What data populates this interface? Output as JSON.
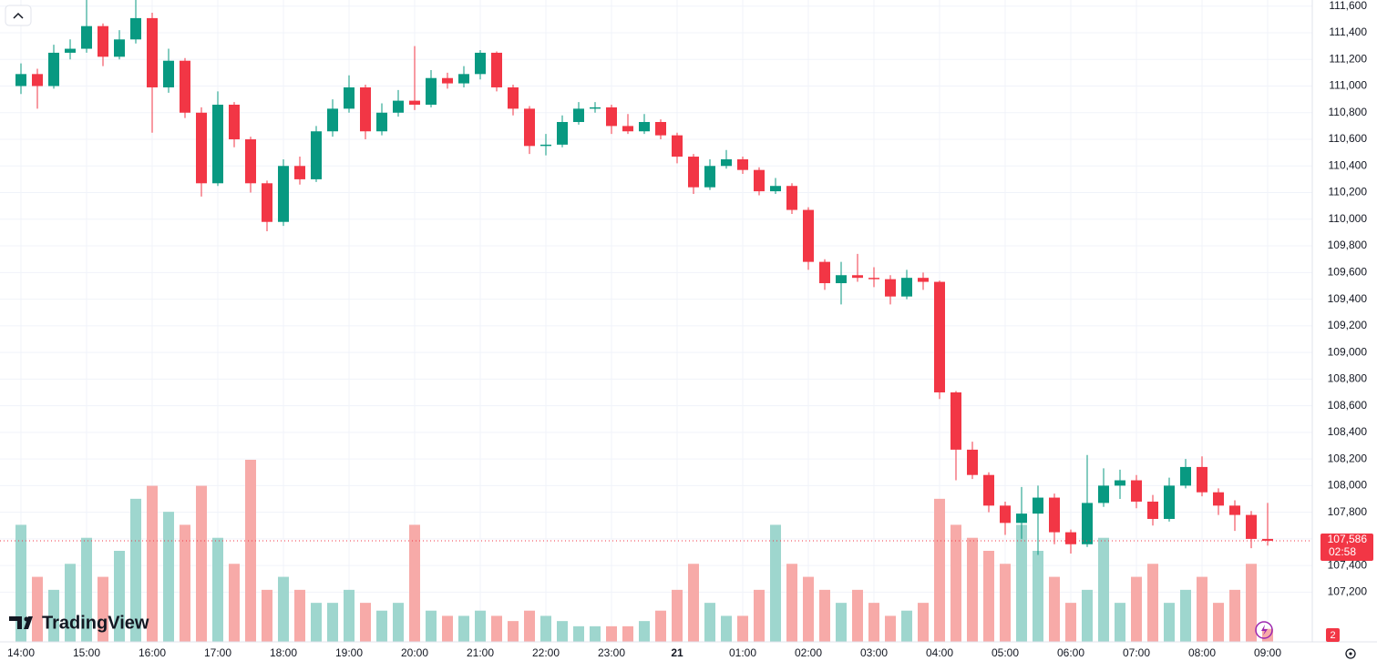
{
  "chart_data": {
    "type": "candlestick",
    "logo": "TradingView",
    "last_price_label": "107,586",
    "countdown": "02:58",
    "badge": "2",
    "grid": true,
    "up_color": "#089981",
    "down_color": "#f23645",
    "volume_up_color": "#9ed6ce",
    "volume_down_color": "#f7aaa8",
    "ylim": [
      106827,
      111646
    ],
    "yticks": [
      {
        "value": 107200,
        "label": "107,200"
      },
      {
        "value": 107400,
        "label": "107,400"
      },
      {
        "value": 107600,
        "label": "107,600"
      },
      {
        "value": 107800,
        "label": "107,800"
      },
      {
        "value": 108000,
        "label": "108,000"
      },
      {
        "value": 108200,
        "label": "108,200"
      },
      {
        "value": 108400,
        "label": "108,400"
      },
      {
        "value": 108600,
        "label": "108,600"
      },
      {
        "value": 108800,
        "label": "108,800"
      },
      {
        "value": 109000,
        "label": "109,000"
      },
      {
        "value": 109200,
        "label": "109,200"
      },
      {
        "value": 109400,
        "label": "109,400"
      },
      {
        "value": 109600,
        "label": "109,600"
      },
      {
        "value": 109800,
        "label": "109,800"
      },
      {
        "value": 110000,
        "label": "110,000"
      },
      {
        "value": 110200,
        "label": "110,200"
      },
      {
        "value": 110400,
        "label": "110,400"
      },
      {
        "value": 110600,
        "label": "110,600"
      },
      {
        "value": 110800,
        "label": "110,800"
      },
      {
        "value": 111000,
        "label": "111,000"
      },
      {
        "value": 111200,
        "label": "111,200"
      },
      {
        "value": 111400,
        "label": "111,400"
      },
      {
        "value": 111600,
        "label": "111,600"
      }
    ],
    "categories": [
      "14:00",
      null,
      null,
      null,
      "15:00",
      null,
      null,
      null,
      "16:00",
      null,
      null,
      null,
      "17:00",
      null,
      null,
      null,
      "18:00",
      null,
      null,
      null,
      "19:00",
      null,
      null,
      null,
      "20:00",
      null,
      null,
      null,
      "21:00",
      null,
      null,
      null,
      "22:00",
      null,
      null,
      null,
      "23:00",
      null,
      null,
      null,
      "21",
      null,
      null,
      null,
      "01:00",
      null,
      null,
      null,
      "02:00",
      null,
      null,
      null,
      "03:00",
      null,
      null,
      null,
      "04:00",
      null,
      null,
      null,
      "05:00",
      null,
      null,
      null,
      "06:00",
      null,
      null,
      null,
      "07:00",
      null,
      null,
      null,
      "08:00",
      null,
      null,
      null,
      "09:00"
    ],
    "open": [
      111000,
      111090,
      111000,
      111250,
      111280,
      111450,
      111220,
      111350,
      111510,
      110990,
      111190,
      110800,
      110270,
      110860,
      110600,
      110270,
      109980,
      110400,
      110300,
      110660,
      110830,
      110990,
      110660,
      110800,
      110890,
      110860,
      111060,
      111020,
      111090,
      111250,
      110990,
      110830,
      110550,
      110560,
      110730,
      110830,
      110840,
      110700,
      110660,
      110730,
      110630,
      110470,
      110240,
      110400,
      110450,
      110370,
      110210,
      110250,
      110070,
      109680,
      109520,
      109580,
      109560,
      109550,
      109420,
      109560,
      109530,
      108700,
      108270,
      108080,
      107850,
      107720,
      107790,
      107910,
      107650,
      107560,
      107870,
      108000,
      108040,
      107880,
      107750,
      108000,
      108140,
      107950,
      107850,
      107780,
      107600
    ],
    "high": [
      111170,
      111130,
      111310,
      111350,
      111660,
      111470,
      111420,
      111660,
      111550,
      111280,
      111210,
      110840,
      110960,
      110880,
      110620,
      110290,
      110450,
      110470,
      110700,
      110900,
      111080,
      111010,
      110870,
      110970,
      111300,
      111120,
      111100,
      111150,
      111270,
      111260,
      111010,
      110850,
      110640,
      110780,
      110880,
      110880,
      110860,
      110790,
      110790,
      110750,
      110650,
      110490,
      110450,
      110520,
      110470,
      110390,
      110310,
      110270,
      110090,
      109700,
      109680,
      109740,
      109640,
      109580,
      109620,
      109600,
      109540,
      108710,
      108330,
      108100,
      107880,
      107990,
      108000,
      107940,
      107670,
      108230,
      108130,
      108120,
      108080,
      107930,
      108060,
      108200,
      108220,
      107980,
      107890,
      107810,
      107870
    ],
    "low": [
      110940,
      110830,
      110980,
      111200,
      111250,
      111150,
      111200,
      111320,
      110650,
      110950,
      110760,
      110170,
      110250,
      110540,
      110200,
      109910,
      109950,
      110260,
      110280,
      110620,
      110800,
      110600,
      110630,
      110770,
      110820,
      110840,
      110980,
      110990,
      111050,
      110960,
      110780,
      110490,
      110480,
      110540,
      110710,
      110800,
      110640,
      110640,
      110640,
      110600,
      110420,
      110190,
      110220,
      110380,
      110340,
      110180,
      110190,
      110040,
      109620,
      109470,
      109360,
      109530,
      109490,
      109360,
      109400,
      109470,
      108650,
      108040,
      108050,
      107800,
      107630,
      107600,
      107480,
      107560,
      107490,
      107540,
      107840,
      107900,
      107830,
      107700,
      107730,
      107980,
      107920,
      107780,
      107660,
      107530,
      107550
    ],
    "close": [
      111090,
      111000,
      111250,
      111280,
      111450,
      111220,
      111350,
      111510,
      110990,
      111190,
      110800,
      110270,
      110860,
      110600,
      110270,
      109980,
      110400,
      110300,
      110660,
      110830,
      110990,
      110660,
      110800,
      110890,
      110860,
      111060,
      111020,
      111090,
      111250,
      110990,
      110830,
      110550,
      110560,
      110730,
      110830,
      110840,
      110700,
      110660,
      110730,
      110630,
      110470,
      110240,
      110400,
      110450,
      110370,
      110210,
      110250,
      110070,
      109680,
      109520,
      109580,
      109560,
      109550,
      109420,
      109560,
      109530,
      108700,
      108270,
      108080,
      107850,
      107720,
      107790,
      107910,
      107650,
      107560,
      107870,
      108000,
      108040,
      107880,
      107750,
      108000,
      108140,
      107950,
      107850,
      107780,
      107600,
      107586
    ],
    "volume": [
      45,
      25,
      20,
      30,
      40,
      25,
      35,
      55,
      60,
      50,
      45,
      60,
      40,
      30,
      70,
      20,
      25,
      20,
      15,
      15,
      20,
      15,
      12,
      15,
      45,
      12,
      10,
      10,
      12,
      10,
      8,
      12,
      10,
      8,
      6,
      6,
      6,
      6,
      8,
      12,
      20,
      30,
      15,
      10,
      10,
      20,
      45,
      30,
      25,
      20,
      15,
      20,
      15,
      10,
      12,
      15,
      55,
      45,
      40,
      35,
      30,
      45,
      35,
      25,
      15,
      20,
      40,
      15,
      25,
      30,
      15,
      20,
      25,
      15,
      20,
      30,
      5
    ]
  }
}
